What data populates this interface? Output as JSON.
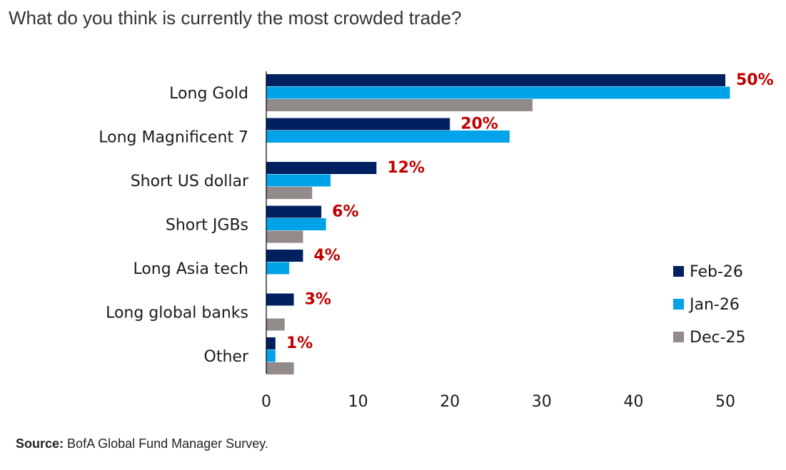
{
  "chart_data": {
    "type": "bar",
    "orientation": "horizontal",
    "title": "What do you think is currently the most crowded trade?",
    "categories": [
      "Long Gold",
      "Long Magnificent 7",
      "Short US dollar",
      "Short JGBs",
      "Long Asia tech",
      "Long global banks",
      "Other"
    ],
    "series": [
      {
        "name": "Feb-26",
        "color": "#002060",
        "values": [
          50,
          20,
          12,
          6,
          4,
          3,
          1
        ]
      },
      {
        "name": "Jan-26",
        "color": "#00a3e8",
        "values": [
          50.5,
          26.5,
          7,
          6.5,
          2.5,
          0,
          1
        ]
      },
      {
        "name": "Dec-25",
        "color": "#938a8a",
        "values": [
          29,
          null,
          5,
          4,
          null,
          2,
          3
        ]
      }
    ],
    "data_labels": [
      "50%",
      "20%",
      "12%",
      "6%",
      "4%",
      "3%",
      "1%"
    ],
    "data_label_color": "#c00000",
    "xlim": [
      0,
      54
    ],
    "xticks": [
      0,
      10,
      20,
      30,
      40,
      50
    ],
    "grid": false,
    "legend_position": "right"
  },
  "source": {
    "label": "Source:",
    "text": "BofA Global Fund Manager Survey."
  }
}
